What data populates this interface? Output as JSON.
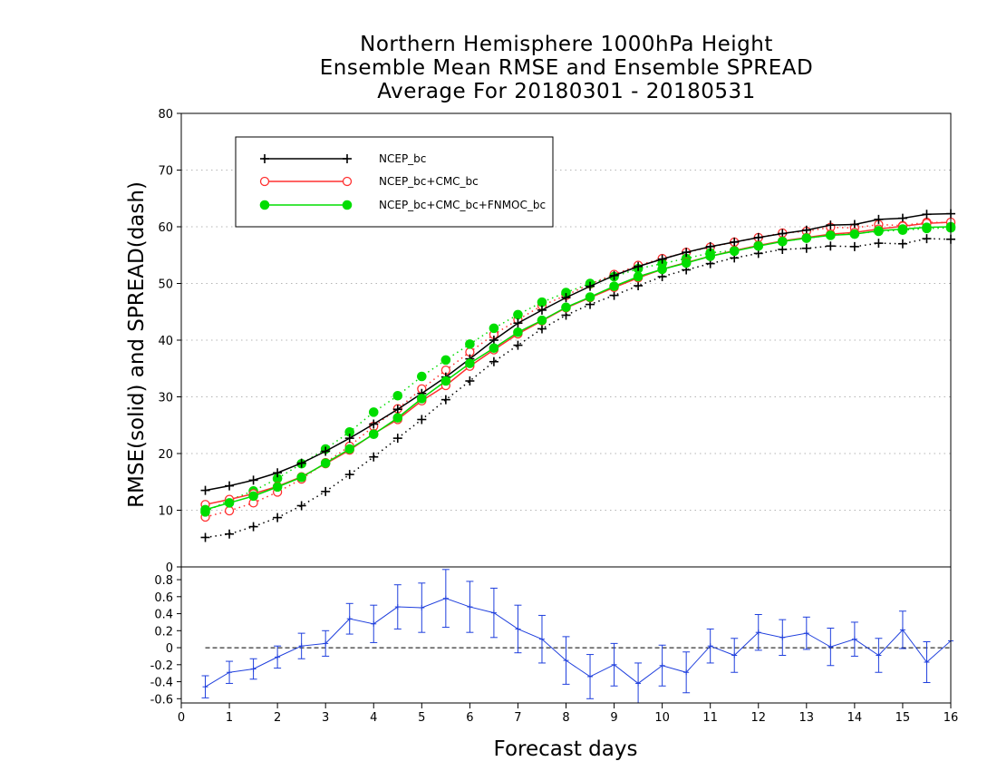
{
  "title_lines": [
    "Northern Hemisphere 1000hPa Height",
    "Ensemble Mean RMSE and Ensemble SPREAD",
    "Average For 20180301 - 20180531"
  ],
  "chart_data": [
    {
      "type": "line",
      "title": "Northern Hemisphere 1000hPa Height Ensemble Mean RMSE and Ensemble SPREAD Average For 20180301 - 20180531",
      "ylabel": "RMSE(solid) and SPREAD(dash)",
      "xlim": [
        0,
        16
      ],
      "ylim": [
        0,
        80
      ],
      "yticks": [
        0,
        10,
        20,
        30,
        40,
        50,
        60,
        70,
        80
      ],
      "grid": true,
      "legend_position": "top-left",
      "x": [
        0.5,
        1,
        1.5,
        2,
        2.5,
        3,
        3.5,
        4,
        4.5,
        5,
        5.5,
        6,
        6.5,
        7,
        7.5,
        8,
        8.5,
        9,
        9.5,
        10,
        10.5,
        11,
        11.5,
        12,
        12.5,
        13,
        13.5,
        14,
        14.5,
        15,
        15.5,
        16
      ],
      "series": [
        {
          "name": "NCEP_bc",
          "color": "#000000",
          "marker": "plus",
          "rmse": [
            13.5,
            14.3,
            15.3,
            16.6,
            18.3,
            20.4,
            22.7,
            25.2,
            27.8,
            30.6,
            33.5,
            36.7,
            40.0,
            43.0,
            45.3,
            47.5,
            49.5,
            51.4,
            53.0,
            54.3,
            55.5,
            56.5,
            57.3,
            58.1,
            58.8,
            59.4,
            60.3,
            60.4,
            61.3,
            61.5,
            62.2,
            62.3
          ],
          "spread": [
            5.2,
            5.8,
            7.1,
            8.7,
            10.8,
            13.3,
            16.3,
            19.4,
            22.7,
            26.0,
            29.5,
            32.8,
            36.2,
            39.1,
            42.0,
            44.4,
            46.3,
            47.9,
            49.6,
            51.2,
            52.4,
            53.5,
            54.5,
            55.3,
            56.0,
            56.2,
            56.6,
            56.5,
            57.1,
            57.0,
            57.9,
            57.8
          ]
        },
        {
          "name": "NCEP_bc+CMC_bc",
          "color": "#ff3030",
          "marker": "open-circle",
          "rmse": [
            11.0,
            11.9,
            12.9,
            14.2,
            15.9,
            18.2,
            20.6,
            23.5,
            26.0,
            29.3,
            32.0,
            35.4,
            38.3,
            41.1,
            43.4,
            45.7,
            47.5,
            49.3,
            51.0,
            52.5,
            53.7,
            54.8,
            55.8,
            56.7,
            57.5,
            58.1,
            58.7,
            59.0,
            59.6,
            60.1,
            60.6,
            60.8
          ],
          "spread": [
            8.8,
            9.9,
            11.3,
            13.2,
            15.5,
            18.4,
            21.3,
            24.8,
            27.9,
            31.4,
            34.7,
            37.9,
            41.0,
            43.6,
            46.1,
            47.9,
            49.9,
            51.6,
            53.2,
            54.4,
            55.5,
            56.4,
            57.3,
            58.1,
            58.9,
            59.2,
            59.9,
            59.8,
            60.4,
            60.2,
            60.8,
            60.7
          ]
        },
        {
          "name": "NCEP_bc+CMC_bc+FNMOC_bc",
          "color": "#00dd00",
          "marker": "filled-circle",
          "rmse": [
            10.1,
            11.3,
            12.5,
            14.1,
            15.8,
            18.3,
            20.8,
            23.4,
            26.3,
            29.7,
            32.8,
            35.9,
            38.6,
            41.4,
            43.5,
            45.8,
            47.6,
            49.5,
            51.2,
            52.5,
            53.6,
            54.8,
            55.7,
            56.6,
            57.4,
            58.0,
            58.5,
            58.7,
            59.3,
            59.6,
            59.9,
            60.0
          ],
          "spread": [
            9.7,
            11.8,
            13.4,
            15.6,
            18.2,
            20.8,
            23.8,
            27.3,
            30.2,
            33.6,
            36.5,
            39.3,
            42.1,
            44.5,
            46.7,
            48.4,
            50.0,
            51.2,
            52.6,
            53.5,
            54.4,
            55.4,
            55.8,
            56.7,
            57.4,
            58.0,
            58.5,
            58.8,
            59.2,
            59.4,
            59.7,
            59.8
          ]
        }
      ]
    },
    {
      "type": "line",
      "xlabel": "Forecast days",
      "xlim": [
        0,
        16
      ],
      "ylim": [
        -0.65,
        0.95
      ],
      "yticks": [
        -0.6,
        -0.4,
        -0.2,
        0,
        0.2,
        0.4,
        0.6,
        0.8
      ],
      "ytick_labels": [
        "-0.6",
        "-0.4",
        "-0.2",
        "0",
        "0.2",
        "0.4",
        "0.6",
        "0.8"
      ],
      "xticks": [
        0,
        1,
        2,
        3,
        4,
        5,
        6,
        7,
        8,
        9,
        10,
        11,
        12,
        13,
        14,
        15,
        16
      ],
      "top_left_label": "0",
      "reference_line": 0,
      "series": [
        {
          "color": "#1f3fdd",
          "error_bars": true,
          "x": [
            0.5,
            1,
            1.5,
            2,
            2.5,
            3,
            3.5,
            4,
            4.5,
            5,
            5.5,
            6,
            6.5,
            7,
            7.5,
            8,
            8.5,
            9,
            9.5,
            10,
            10.5,
            11,
            11.5,
            12,
            12.5,
            13,
            13.5,
            14,
            14.5,
            15,
            15.5,
            16
          ],
          "values": [
            -0.46,
            -0.29,
            -0.25,
            -0.11,
            0.02,
            0.05,
            0.34,
            0.28,
            0.48,
            0.47,
            0.58,
            0.48,
            0.41,
            0.22,
            0.1,
            -0.15,
            -0.34,
            -0.2,
            -0.42,
            -0.21,
            -0.29,
            0.02,
            -0.09,
            0.18,
            0.12,
            0.17,
            0.01,
            0.1,
            -0.09,
            0.21,
            -0.17,
            0.08
          ],
          "errors": [
            0.13,
            0.13,
            0.12,
            0.13,
            0.15,
            0.15,
            0.18,
            0.22,
            0.26,
            0.29,
            0.34,
            0.3,
            0.29,
            0.28,
            0.28,
            0.28,
            0.26,
            0.25,
            0.24,
            0.24,
            0.24,
            0.2,
            0.2,
            0.21,
            0.21,
            0.19,
            0.22,
            0.2,
            0.2,
            0.22,
            0.24,
            0.24
          ]
        }
      ]
    }
  ]
}
